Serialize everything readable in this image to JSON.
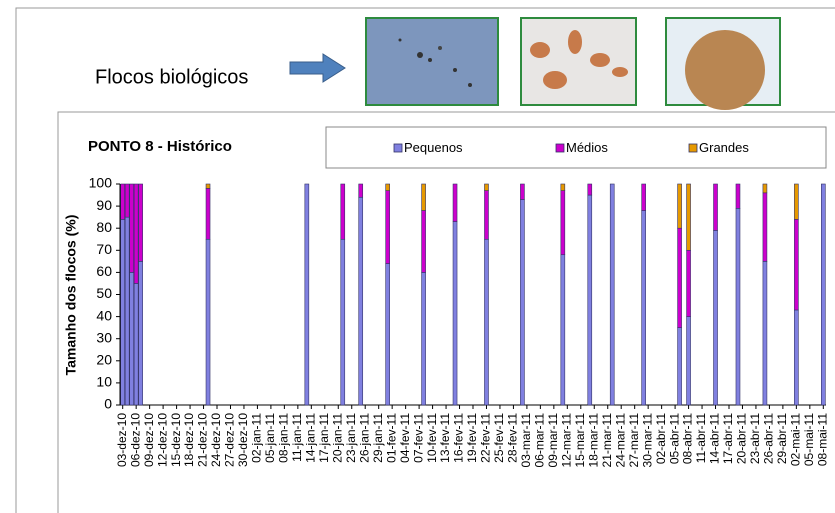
{
  "chart_data": {
    "type": "bar",
    "stacked": true,
    "annotation": "Flocos biológicos",
    "title": "PONTO 8 - Histórico",
    "y_label": "Tamanho dos flocos (%)",
    "legend": "top",
    "x": [
      "03-dez-10",
      "04-dez-10",
      "05-dez-10",
      "06-dez-10",
      "07-dez-10",
      "22-dez-10",
      "13-jan-11",
      "21-jan-11",
      "25-jan-11",
      "31-jan-11",
      "08-fev-11",
      "15-fev-11",
      "22-fev-11",
      "02-mar-11",
      "11-mar-11",
      "17-mar-11",
      "22-mar-11",
      "29-mar-11",
      "06-abr-11",
      "08-abr-11",
      "14-abr-11",
      "19-abr-11",
      "25-abr-11",
      "02-mai-11",
      "08-mai-11"
    ],
    "series": [
      {
        "name": "Pequenos",
        "color": "#8080e0",
        "values": [
          84,
          85,
          60,
          55,
          65,
          75,
          100,
          75,
          94,
          64,
          60,
          83,
          75,
          93,
          68,
          95,
          100,
          88,
          35,
          40,
          79,
          89,
          65,
          43,
          100
        ]
      },
      {
        "name": "Médios",
        "color": "#cc00cc",
        "values": [
          16,
          15,
          40,
          45,
          35,
          23,
          0,
          25,
          6,
          33,
          28,
          17,
          22,
          7,
          29,
          5,
          0,
          12,
          45,
          30,
          21,
          11,
          31,
          41,
          0
        ]
      },
      {
        "name": "Grandes",
        "color": "#e69900",
        "values": [
          0,
          0,
          0,
          0,
          0,
          2,
          0,
          0,
          0,
          3,
          12,
          0,
          3,
          0,
          3,
          0,
          0,
          0,
          20,
          30,
          0,
          0,
          4,
          16,
          0
        ]
      }
    ],
    "xlim": [
      "03-dez-10",
      "08-mai-11"
    ],
    "xticks": [
      "03-dez-10",
      "06-dez-10",
      "09-dez-10",
      "12-dez-10",
      "15-dez-10",
      "18-dez-10",
      "21-dez-10",
      "24-dez-10",
      "27-dez-10",
      "30-dez-10",
      "02-jan-11",
      "05-jan-11",
      "08-jan-11",
      "11-jan-11",
      "14-jan-11",
      "17-jan-11",
      "20-jan-11",
      "23-jan-11",
      "26-jan-11",
      "29-jan-11",
      "01-fev-11",
      "04-fev-11",
      "07-fev-11",
      "10-fev-11",
      "13-fev-11",
      "16-fev-11",
      "19-fev-11",
      "22-fev-11",
      "25-fev-11",
      "28-fev-11",
      "03-mar-11",
      "06-mar-11",
      "09-mar-11",
      "12-mar-11",
      "15-mar-11",
      "18-mar-11",
      "21-mar-11",
      "24-mar-11",
      "27-mar-11",
      "30-mar-11",
      "02-abr-11",
      "05-abr-11",
      "08-abr-11",
      "11-abr-11",
      "14-abr-11",
      "17-abr-11",
      "20-abr-11",
      "23-abr-11",
      "26-abr-11",
      "29-abr-11",
      "02-mai-11",
      "05-mai-11",
      "08-mai-11"
    ],
    "ylim": [
      0,
      100
    ],
    "yticks": [
      0,
      10,
      20,
      30,
      40,
      50,
      60,
      70,
      80,
      90,
      100
    ],
    "grid": false
  }
}
